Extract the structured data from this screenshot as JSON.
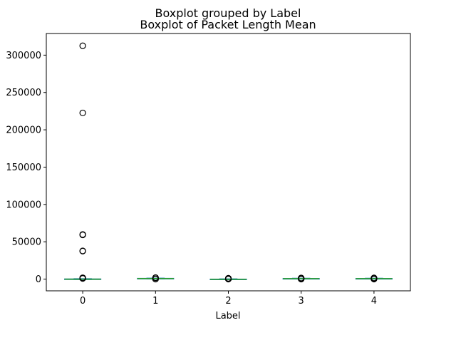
{
  "chart_data": {
    "type": "box",
    "suptitle": "Boxplot grouped by Label",
    "title": "Boxplot of Packet Length Mean",
    "xlabel": "Label",
    "ylabel": "",
    "categories": [
      "0",
      "1",
      "2",
      "3",
      "4"
    ],
    "ylim": [
      -15700,
      329000
    ],
    "yticks": [
      0,
      50000,
      100000,
      150000,
      200000,
      250000,
      300000
    ],
    "ytick_labels": [
      "0",
      "50000",
      "100000",
      "150000",
      "200000",
      "250000",
      "300000"
    ],
    "grid": false,
    "boxes": [
      {
        "category": "0",
        "whisker_low": -700,
        "q1": -400,
        "median": -100,
        "q3": 300,
        "whisker_high": 600,
        "outliers": [
          312500,
          222600,
          59800,
          59200,
          37800,
          37500,
          1800,
          1400,
          1100,
          900
        ]
      },
      {
        "category": "1",
        "whisker_low": 200,
        "q1": 500,
        "median": 800,
        "q3": 1100,
        "whisker_high": 1400,
        "outliers": [
          2000,
          1700,
          200,
          0
        ]
      },
      {
        "category": "2",
        "whisker_low": -800,
        "q1": -500,
        "median": -200,
        "q3": 100,
        "whisker_high": 400,
        "outliers": [
          1100,
          800,
          300,
          0
        ]
      },
      {
        "category": "3",
        "whisker_low": 100,
        "q1": 400,
        "median": 600,
        "q3": 900,
        "whisker_high": 1200,
        "outliers": [
          1500,
          1300,
          200,
          0
        ]
      },
      {
        "category": "4",
        "whisker_low": 0,
        "q1": 300,
        "median": 600,
        "q3": 900,
        "whisker_high": 1200,
        "outliers": [
          1600,
          1300,
          300,
          0
        ]
      }
    ],
    "colors": {
      "box": "#1f77b4",
      "whisker": "#1f77b4",
      "median": "#2ca02c",
      "outlier_edge": "#000000"
    }
  }
}
